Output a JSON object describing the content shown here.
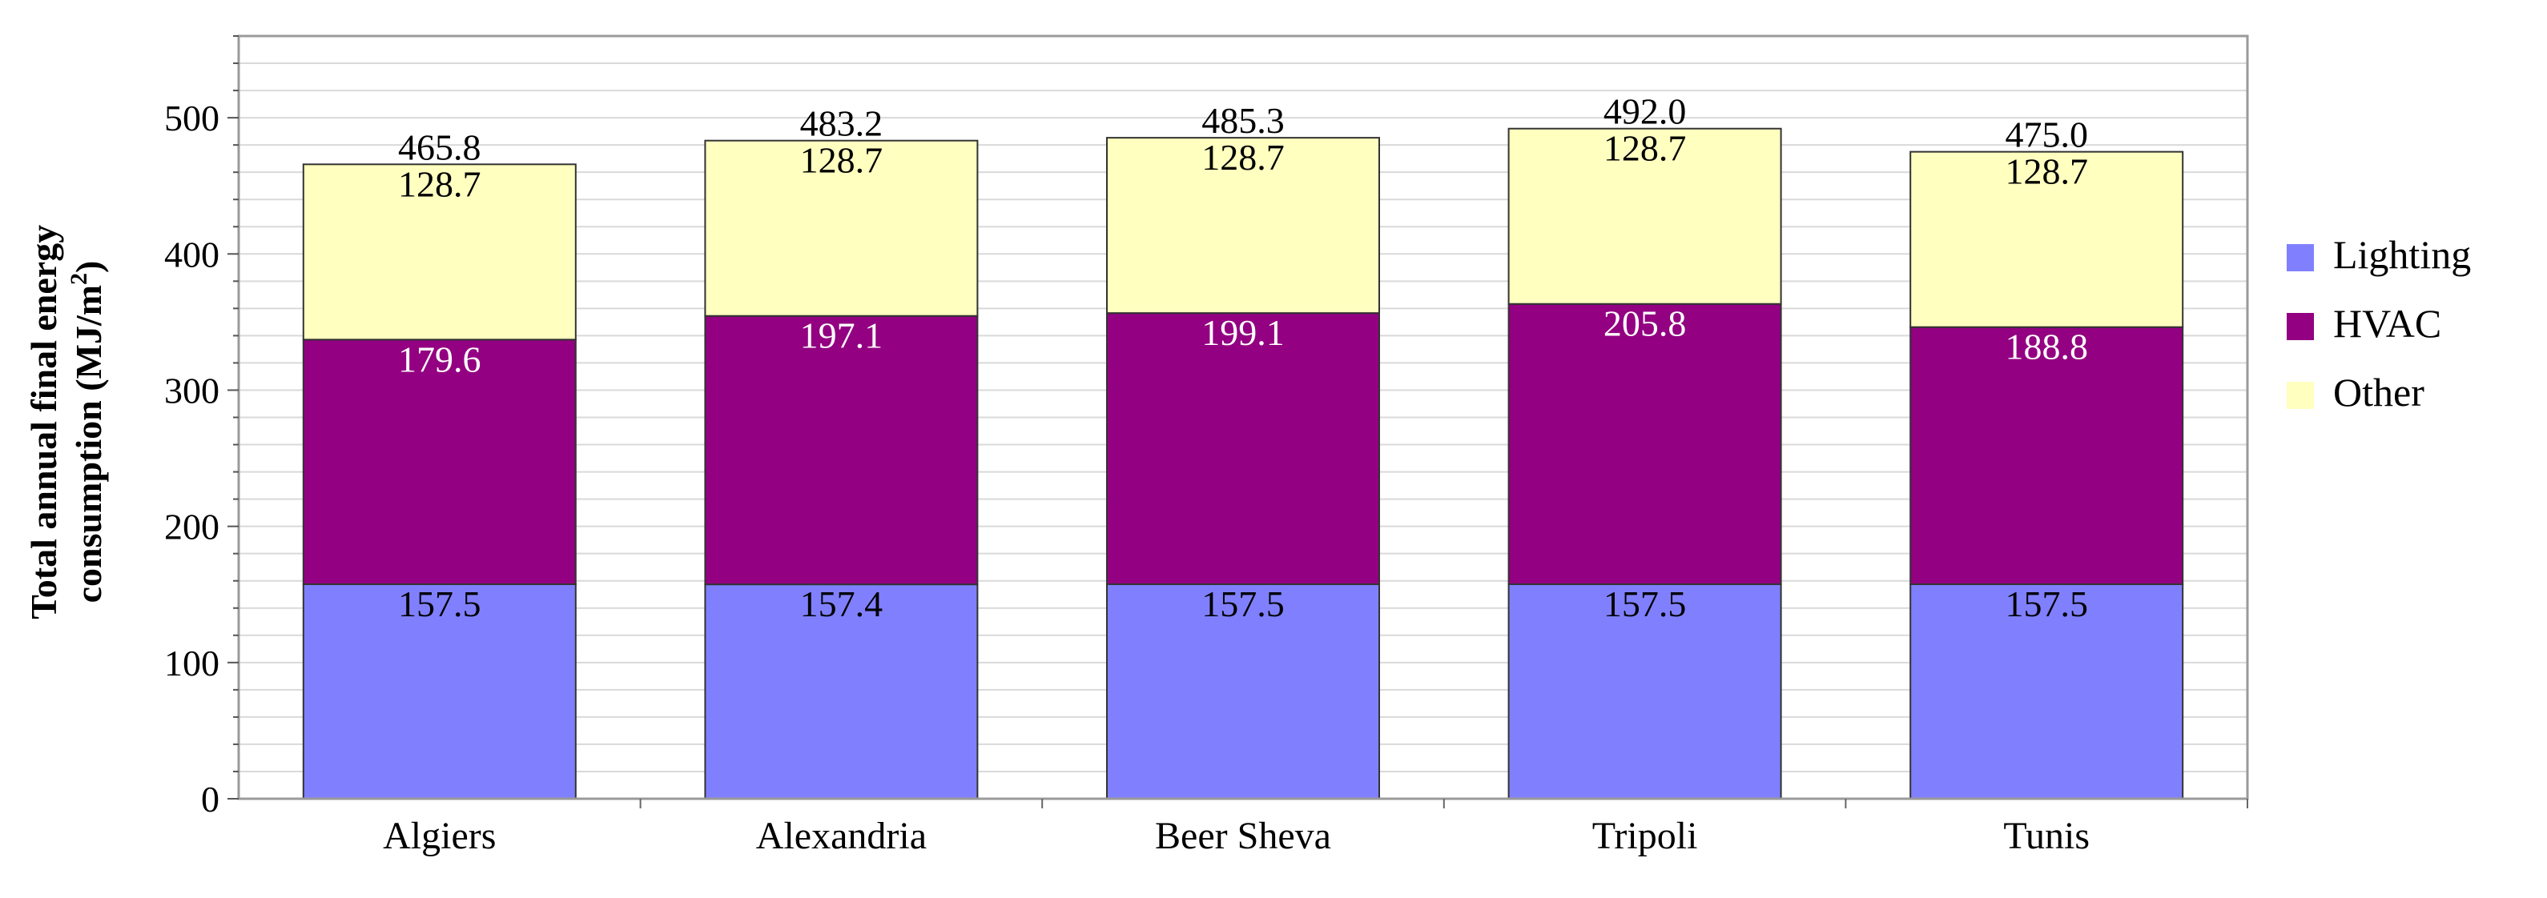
{
  "chart_data": {
    "type": "bar",
    "stacked": true,
    "categories": [
      "Algiers",
      "Alexandria",
      "Beer Sheva",
      "Tripoli",
      "Tunis"
    ],
    "series": [
      {
        "name": "Lighting",
        "color": "#8080ff",
        "label_color": "#000000",
        "values": [
          157.5,
          157.4,
          157.5,
          157.5,
          157.5
        ]
      },
      {
        "name": "HVAC",
        "color": "#930081",
        "label_color": "#ffffff",
        "values": [
          179.6,
          197.1,
          199.1,
          205.8,
          188.8
        ]
      },
      {
        "name": "Other",
        "color": "#ffffc0",
        "label_color": "#000000",
        "values": [
          128.7,
          128.7,
          128.7,
          128.7,
          128.7
        ]
      }
    ],
    "totals": [
      "465.8",
      "483.2",
      "485.3",
      "492.0",
      "475.0"
    ],
    "value_labels": [
      [
        "157.5",
        "157.4",
        "157.5",
        "157.5",
        "157.5"
      ],
      [
        "179.6",
        "197.1",
        "199.1",
        "205.8",
        "188.8"
      ],
      [
        "128.7",
        "128.7",
        "128.7",
        "128.7",
        "128.7"
      ]
    ],
    "ylabel_line1": "Total annual final energy",
    "ylabel_line2": "consumption (MJ/m",
    "ylabel_sup": "2",
    "ylabel_close": ")",
    "ylim": [
      0,
      560
    ],
    "yticks": [
      0,
      100,
      200,
      300,
      400,
      500
    ],
    "grid": true,
    "legend_position": "right",
    "plot_background": "#ffffff",
    "grid_color": "#d9d9d9"
  }
}
